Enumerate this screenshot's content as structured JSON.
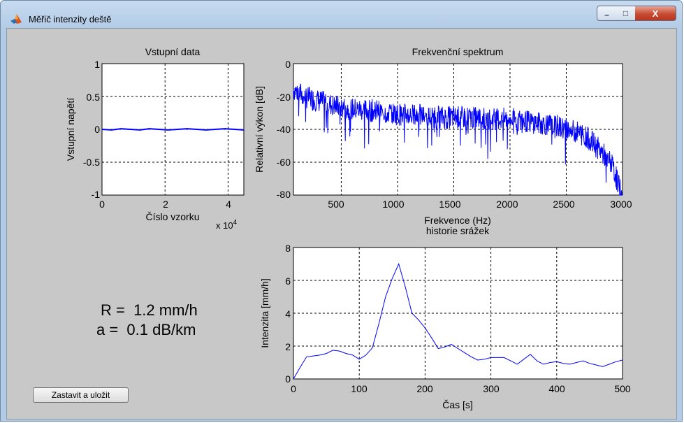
{
  "window": {
    "title": "Měřič intenzity deště",
    "min_glyph": "–",
    "max_glyph": "□",
    "close_glyph": "X"
  },
  "plots": {
    "input": {
      "title": "Vstupní data",
      "xlabel": "Číslo vzorku",
      "ylabel": "Vstupní napětí",
      "xticks": [
        "0",
        "2",
        "4"
      ],
      "yticks": [
        "1",
        "0.5",
        "0",
        "-0.5",
        "-1"
      ],
      "x_multiplier": "x 10",
      "x_multiplier_exp": "4"
    },
    "spectrum": {
      "title": "Frekvenční spektrum",
      "xlabel": "Frekvence (Hz)",
      "ylabel": "Relativní výkon [dB]",
      "xticks": [
        "500",
        "1000",
        "1500",
        "2000",
        "2500",
        "3000"
      ],
      "yticks": [
        "0",
        "-20",
        "-40",
        "-60",
        "-80"
      ]
    },
    "history": {
      "title": "historie srážek",
      "xlabel": "Čas [s]",
      "ylabel": "Intenzita [mm/h]",
      "xticks": [
        "0",
        "100",
        "200",
        "300",
        "400",
        "500"
      ],
      "yticks": [
        "8",
        "6",
        "4",
        "2",
        "0"
      ]
    }
  },
  "chart_data": [
    {
      "type": "line",
      "title": "Vstupní data",
      "xlabel": "Číslo vzorku",
      "ylabel": "Vstupní napětí",
      "xlim": [
        0,
        45000
      ],
      "ylim": [
        -1,
        1
      ],
      "grid": true,
      "color": "#0000ff",
      "x": [
        0,
        3000,
        6000,
        9000,
        12000,
        15000,
        18000,
        21000,
        24000,
        27000,
        30000,
        33000,
        36000,
        39000,
        42000,
        45000
      ],
      "y": [
        0.0,
        -0.01,
        0.01,
        0.0,
        -0.01,
        0.01,
        0.0,
        -0.01,
        0.0,
        0.01,
        0.0,
        -0.01,
        0.0,
        0.01,
        0.0,
        -0.01
      ]
    },
    {
      "type": "line",
      "title": "Frekvenční spektrum",
      "xlabel": "Frekvence (Hz)",
      "ylabel": "Relativní výkon [dB]",
      "xlim": [
        75,
        3000
      ],
      "ylim": [
        -80,
        0
      ],
      "grid": true,
      "color": "#0000ff",
      "x": [
        75,
        200,
        300,
        400,
        500,
        600,
        800,
        1000,
        1200,
        1400,
        1600,
        1800,
        2000,
        2200,
        2400,
        2600,
        2700,
        2800,
        2900,
        3000
      ],
      "y": [
        -15,
        -20,
        -22,
        -24,
        -26,
        -27,
        -28,
        -30,
        -31,
        -32,
        -32,
        -33,
        -33,
        -35,
        -37,
        -41,
        -45,
        -52,
        -60,
        -80
      ]
    },
    {
      "type": "line",
      "title": "historie srážek",
      "xlabel": "Čas [s]",
      "ylabel": "Intenzita [mm/h]",
      "xlim": [
        0,
        500
      ],
      "ylim": [
        0,
        8
      ],
      "grid": true,
      "color": "#0000ff",
      "x": [
        0,
        10,
        20,
        30,
        40,
        50,
        60,
        70,
        80,
        90,
        100,
        110,
        120,
        130,
        140,
        150,
        160,
        170,
        180,
        190,
        200,
        210,
        220,
        230,
        240,
        250,
        260,
        270,
        280,
        290,
        300,
        310,
        320,
        330,
        340,
        350,
        360,
        370,
        380,
        390,
        400,
        410,
        420,
        430,
        440,
        450,
        460,
        470,
        480,
        490,
        500
      ],
      "y": [
        0.0,
        0.7,
        1.35,
        1.4,
        1.45,
        1.55,
        1.75,
        1.7,
        1.55,
        1.45,
        1.2,
        1.45,
        1.9,
        3.4,
        5.0,
        6.1,
        7.0,
        5.6,
        4.0,
        3.6,
        3.1,
        2.5,
        1.85,
        1.95,
        2.1,
        1.85,
        1.6,
        1.35,
        1.15,
        1.2,
        1.3,
        1.3,
        1.3,
        1.1,
        0.9,
        1.2,
        1.5,
        1.1,
        0.9,
        1.0,
        1.05,
        0.95,
        0.9,
        1.0,
        1.1,
        0.95,
        0.85,
        0.75,
        0.9,
        1.05,
        1.15
      ]
    }
  ],
  "results": {
    "r_text": "R =  1.2 mm/h",
    "a_text": "a =  0.1 dB/km"
  },
  "buttons": {
    "stop_save": "Zastavit a uložit"
  }
}
